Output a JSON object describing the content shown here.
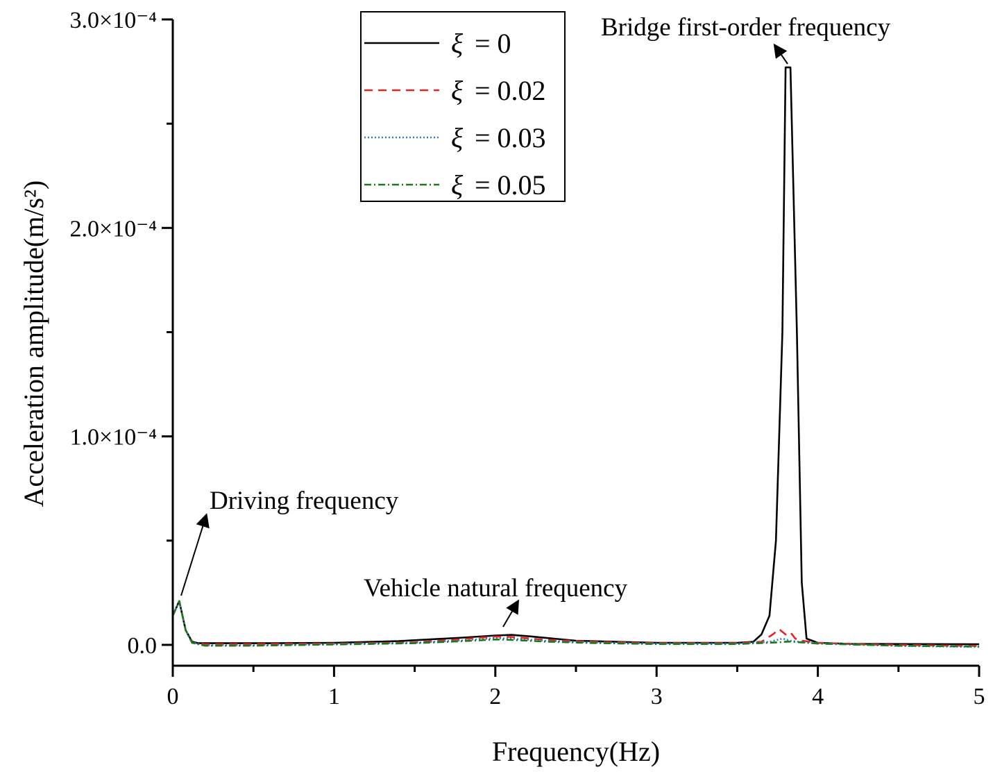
{
  "chart_data": {
    "type": "line",
    "xlabel": "Frequency(Hz)",
    "ylabel": "Acceleration amplitude(m/s²)",
    "xlim": [
      0,
      5
    ],
    "ylim": [
      -1e-05,
      0.0003
    ],
    "x_ticks": [
      {
        "value": 0,
        "label": "0"
      },
      {
        "value": 1,
        "label": "1"
      },
      {
        "value": 2,
        "label": "2"
      },
      {
        "value": 3,
        "label": "3"
      },
      {
        "value": 4,
        "label": "4"
      },
      {
        "value": 5,
        "label": "5"
      }
    ],
    "y_ticks": [
      {
        "value": 0,
        "label": "0.0"
      },
      {
        "value": 0.0001,
        "label": "1.0×10⁻⁴"
      },
      {
        "value": 0.0002,
        "label": "2.0×10⁻⁴"
      },
      {
        "value": 0.0003,
        "label": "3.0×10⁻⁴"
      }
    ],
    "grid": false,
    "legend": {
      "position": "top-center",
      "symbol": "ξ"
    },
    "series": [
      {
        "name": "= 0",
        "color": "#000000",
        "style": "solid",
        "x": [
          0,
          0.04,
          0.08,
          0.12,
          0.16,
          0.3,
          0.6,
          1.0,
          1.4,
          1.8,
          2.0,
          2.1,
          2.2,
          2.5,
          3.0,
          3.5,
          3.6,
          3.65,
          3.7,
          3.74,
          3.78,
          3.8,
          3.83,
          3.87,
          3.9,
          3.93,
          4.0,
          4.2,
          5.0
        ],
        "y": [
          1.4e-05,
          2.1e-05,
          7e-06,
          1.5e-06,
          8e-07,
          8e-07,
          8e-07,
          1e-06,
          1.8e-06,
          3.5e-06,
          4.5e-06,
          4.8e-06,
          4.2e-06,
          2e-06,
          1e-06,
          1e-06,
          1.5e-06,
          5e-06,
          1.4e-05,
          5e-05,
          0.00015,
          0.000277,
          0.000277,
          0.00015,
          3e-05,
          3e-06,
          1e-06,
          5e-07,
          3e-07
        ]
      },
      {
        "name": "= 0.02",
        "color": "#e8231f",
        "style": "dashed",
        "x": [
          0,
          0.04,
          0.08,
          0.12,
          0.2,
          0.5,
          1.0,
          1.5,
          1.8,
          2.0,
          2.1,
          2.3,
          2.6,
          3.0,
          3.5,
          3.65,
          3.72,
          3.76,
          3.8,
          3.83,
          3.86,
          3.9,
          4.0,
          4.3,
          5.0
        ],
        "y": [
          1.4e-05,
          2.1e-05,
          7e-06,
          1e-06,
          3e-07,
          4e-07,
          6e-07,
          1.2e-06,
          2.8e-06,
          4e-06,
          3.8e-06,
          2.5e-06,
          1.5e-06,
          8e-07,
          8e-07,
          1.5e-06,
          5e-06,
          7.5e-06,
          5e-06,
          6e-06,
          3e-06,
          2e-06,
          1e-06,
          2e-07,
          -5e-07
        ]
      },
      {
        "name": "= 0.03",
        "color": "#2f7fcc",
        "style": "dotted",
        "x": [
          0,
          0.04,
          0.08,
          0.12,
          0.2,
          0.5,
          1.0,
          1.5,
          1.8,
          2.0,
          2.1,
          2.3,
          2.6,
          3.0,
          3.5,
          3.7,
          3.78,
          3.83,
          3.88,
          4.0,
          4.5,
          5.0
        ],
        "y": [
          1.4e-05,
          2.1e-05,
          7e-06,
          1e-06,
          -2e-07,
          -2e-07,
          4e-07,
          1e-06,
          2.2e-06,
          3.2e-06,
          3e-06,
          2e-06,
          1.2e-06,
          6e-07,
          6e-07,
          1.5e-06,
          3e-06,
          2e-06,
          1.5e-06,
          8e-07,
          -5e-07,
          -1e-06
        ]
      },
      {
        "name": "= 0.05",
        "color": "#1a7a1a",
        "style": "dashdot",
        "x": [
          0,
          0.04,
          0.08,
          0.12,
          0.2,
          0.5,
          1.0,
          1.5,
          1.8,
          2.0,
          2.1,
          2.3,
          2.6,
          3.0,
          3.5,
          3.75,
          3.82,
          3.9,
          4.0,
          4.5,
          5.0
        ],
        "y": [
          1.4e-05,
          2.1e-05,
          7e-06,
          1e-06,
          -4e-07,
          -4e-07,
          2e-07,
          8e-07,
          1.8e-06,
          2.6e-06,
          2.4e-06,
          1.6e-06,
          9e-07,
          4e-07,
          4e-07,
          1.2e-06,
          1.6e-06,
          1.2e-06,
          6e-07,
          -4e-07,
          -8e-07
        ]
      }
    ],
    "annotations": [
      {
        "text": "Bridge first-order frequency",
        "x": 3.8,
        "y": 0.000277
      },
      {
        "text": "Driving frequency",
        "x": 0.04,
        "y": 2.1e-05
      },
      {
        "text": "Vehicle natural frequency",
        "x": 2.1,
        "y": 4.8e-06
      }
    ]
  }
}
